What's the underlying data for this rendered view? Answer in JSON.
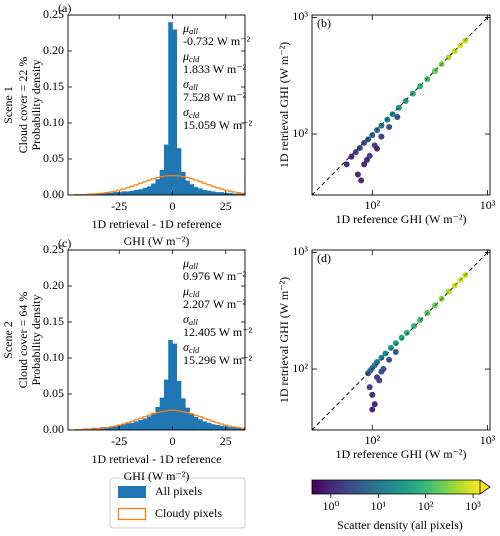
{
  "chart_data": [
    {
      "type": "histogram",
      "panel_label": "(a)",
      "scene": "Scene 1",
      "cloud_cover": "Cloud cover = 22 %",
      "ylabel": "Probability density",
      "xlabel": [
        "1D retrieval - 1D reference",
        "GHI (W m⁻²)"
      ],
      "xlim": [
        -49,
        34
      ],
      "ylim": [
        0,
        0.25
      ],
      "xticks": [
        -25,
        0,
        25
      ],
      "yticks": [
        {
          "value": 0,
          "label": "0.00"
        },
        {
          "value": 0.05,
          "label": "0.05"
        },
        {
          "value": 0.1,
          "label": "0.10"
        },
        {
          "value": 0.15,
          "label": "0.15"
        },
        {
          "value": 0.2,
          "label": "0.20"
        },
        {
          "value": 0.25,
          "label": "0.25"
        }
      ],
      "bins": [
        -46,
        -44,
        -42,
        -40,
        -38,
        -36,
        -34,
        -32,
        -30,
        -28,
        -26,
        -24,
        -22,
        -20,
        -18,
        -16,
        -14,
        -12,
        -10,
        -8,
        -6,
        -4,
        -2,
        0,
        2,
        4,
        6,
        8,
        10,
        12,
        14,
        16,
        18,
        20,
        22,
        24,
        26,
        28,
        30,
        32,
        34
      ],
      "series": [
        {
          "name": "All pixels",
          "color": "#1f77b4",
          "style": "filled",
          "values": [
            0.001,
            0.001,
            0.001,
            0.002,
            0.002,
            0.002,
            0.003,
            0.003,
            0.003,
            0.004,
            0.004,
            0.005,
            0.005,
            0.006,
            0.007,
            0.008,
            0.01,
            0.012,
            0.016,
            0.022,
            0.035,
            0.07,
            0.24,
            0.23,
            0.065,
            0.032,
            0.02,
            0.015,
            0.011,
            0.009,
            0.007,
            0.006,
            0.005,
            0.004,
            0.004,
            0.003,
            0.003,
            0.002,
            0.002,
            0.002
          ]
        },
        {
          "name": "Cloudy pixels",
          "color": "#ff7f0e",
          "style": "step",
          "values": [
            0.0003,
            0.0004,
            0.0006,
            0.0009,
            0.0013,
            0.0018,
            0.0024,
            0.0032,
            0.0042,
            0.0053,
            0.0067,
            0.0083,
            0.0101,
            0.0121,
            0.0142,
            0.0164,
            0.0185,
            0.0206,
            0.0226,
            0.0242,
            0.0255,
            0.0265,
            0.0269,
            0.0269,
            0.0265,
            0.0255,
            0.0242,
            0.0226,
            0.0206,
            0.0185,
            0.0164,
            0.0142,
            0.0121,
            0.0101,
            0.0083,
            0.0067,
            0.0053,
            0.0042,
            0.0032,
            0.0024
          ]
        }
      ],
      "annotations": [
        {
          "symbol": "μ",
          "sub": "all",
          "text": "-0.732 W m⁻²"
        },
        {
          "symbol": "μ",
          "sub": "cld",
          "text": "1.833 W m⁻²"
        },
        {
          "symbol": "σ",
          "sub": "all",
          "text": "7.528 W m⁻²"
        },
        {
          "symbol": "σ",
          "sub": "cld",
          "text": "15.059 W m⁻²"
        }
      ]
    },
    {
      "type": "scatter",
      "panel_label": "(b)",
      "xlabel": "1D reference GHI (W m⁻²)",
      "ylabel": "1D retrieval GHI (W m⁻²)",
      "log": true,
      "identity_line": true,
      "xlim": [
        30,
        1050
      ],
      "ylim": [
        30,
        1050
      ],
      "xticks": [
        {
          "value": 100,
          "label": "10²"
        },
        {
          "value": 1000,
          "label": "10³"
        }
      ],
      "yticks": [
        {
          "value": 100,
          "label": "10²"
        },
        {
          "value": 1000,
          "label": "10³"
        }
      ],
      "x": [
        60,
        66,
        72,
        78,
        85,
        92,
        100,
        110,
        120,
        135,
        150,
        170,
        195,
        225,
        260,
        300,
        350,
        400,
        460,
        520,
        580,
        640,
        75,
        85,
        95,
        105,
        120,
        140,
        165,
        90,
        110,
        80
      ],
      "y": [
        55,
        64,
        70,
        76,
        84,
        90,
        98,
        108,
        118,
        133,
        148,
        168,
        192,
        222,
        257,
        296,
        347,
        398,
        455,
        515,
        575,
        635,
        45,
        55,
        65,
        80,
        95,
        115,
        140,
        60,
        75,
        40
      ],
      "density": [
        1,
        1,
        2,
        2,
        3,
        4,
        5,
        8,
        10,
        15,
        20,
        30,
        40,
        60,
        80,
        120,
        200,
        300,
        500,
        800,
        1000,
        600,
        1,
        1,
        2,
        2,
        2,
        3,
        3,
        1,
        1,
        1
      ]
    },
    {
      "type": "histogram",
      "panel_label": "(c)",
      "scene": "Scene 2",
      "cloud_cover": "Cloud cover = 64 %",
      "ylabel": "Probability density",
      "xlabel": [
        "1D retrieval - 1D reference",
        "GHI (W m⁻²)"
      ],
      "xlim": [
        -49,
        34
      ],
      "ylim": [
        0,
        0.25
      ],
      "xticks": [
        -25,
        0,
        25
      ],
      "yticks": [
        {
          "value": 0,
          "label": "0.00"
        },
        {
          "value": 0.05,
          "label": "0.05"
        },
        {
          "value": 0.1,
          "label": "0.10"
        },
        {
          "value": 0.15,
          "label": "0.15"
        },
        {
          "value": 0.2,
          "label": "0.20"
        },
        {
          "value": 0.25,
          "label": "0.25"
        }
      ],
      "bins": [
        -46,
        -44,
        -42,
        -40,
        -38,
        -36,
        -34,
        -32,
        -30,
        -28,
        -26,
        -24,
        -22,
        -20,
        -18,
        -16,
        -14,
        -12,
        -10,
        -8,
        -6,
        -4,
        -2,
        0,
        2,
        4,
        6,
        8,
        10,
        12,
        14,
        16,
        18,
        20,
        22,
        24,
        26,
        28,
        30,
        32,
        34
      ],
      "series": [
        {
          "name": "All pixels",
          "color": "#1f77b4",
          "style": "filled",
          "values": [
            0.001,
            0.001,
            0.002,
            0.002,
            0.003,
            0.003,
            0.004,
            0.004,
            0.005,
            0.006,
            0.007,
            0.008,
            0.009,
            0.01,
            0.012,
            0.014,
            0.016,
            0.019,
            0.024,
            0.032,
            0.045,
            0.07,
            0.125,
            0.12,
            0.068,
            0.044,
            0.031,
            0.023,
            0.018,
            0.015,
            0.012,
            0.01,
            0.008,
            0.007,
            0.006,
            0.005,
            0.004,
            0.004,
            0.003,
            0.003
          ]
        },
        {
          "name": "Cloudy pixels",
          "color": "#ff7f0e",
          "style": "step",
          "values": [
            0.0003,
            0.0004,
            0.0006,
            0.0009,
            0.0013,
            0.0018,
            0.0024,
            0.0032,
            0.0042,
            0.0053,
            0.0067,
            0.0083,
            0.0101,
            0.0121,
            0.0142,
            0.0164,
            0.0185,
            0.0206,
            0.0226,
            0.0242,
            0.0255,
            0.0265,
            0.0275,
            0.0275,
            0.0265,
            0.0255,
            0.0242,
            0.0226,
            0.0206,
            0.0185,
            0.0164,
            0.0142,
            0.0121,
            0.0101,
            0.0083,
            0.0067,
            0.0053,
            0.0042,
            0.0032,
            0.0024
          ]
        }
      ],
      "annotations": [
        {
          "symbol": "μ",
          "sub": "all",
          "text": "0.976 W m⁻²"
        },
        {
          "symbol": "μ",
          "sub": "cld",
          "text": "2.207 W m⁻²"
        },
        {
          "symbol": "σ",
          "sub": "all",
          "text": "12.405 W m⁻²"
        },
        {
          "symbol": "σ",
          "sub": "cld",
          "text": "15.296 W m⁻²"
        }
      ]
    },
    {
      "type": "scatter",
      "panel_label": "(d)",
      "xlabel": "1D reference GHI (W m⁻²)",
      "ylabel": "1D retrieval GHI (W m⁻²)",
      "log": true,
      "identity_line": true,
      "xlim": [
        30,
        1050
      ],
      "ylim": [
        30,
        1050
      ],
      "xticks": [
        {
          "value": 100,
          "label": "10²"
        },
        {
          "value": 1000,
          "label": "10³"
        }
      ],
      "yticks": [
        {
          "value": 100,
          "label": "10²"
        },
        {
          "value": 1000,
          "label": "10³"
        }
      ],
      "x": [
        92,
        96,
        100,
        105,
        110,
        120,
        130,
        145,
        160,
        180,
        200,
        230,
        260,
        300,
        350,
        400,
        460,
        520,
        580,
        640,
        95,
        100,
        110,
        120,
        140,
        105,
        115,
        100,
        125,
        160
      ],
      "y": [
        92,
        97,
        102,
        108,
        115,
        125,
        136,
        152,
        167,
        186,
        205,
        234,
        264,
        303,
        352,
        402,
        462,
        521,
        581,
        640,
        70,
        60,
        85,
        95,
        120,
        50,
        80,
        45,
        100,
        140
      ],
      "density": [
        3,
        5,
        6,
        8,
        10,
        15,
        20,
        30,
        40,
        50,
        60,
        80,
        100,
        150,
        200,
        300,
        500,
        800,
        1000,
        700,
        2,
        1,
        2,
        3,
        3,
        1,
        2,
        1,
        3,
        4
      ]
    }
  ],
  "colorbar": {
    "label": "Scatter density (all pixels)",
    "colormap": "viridis",
    "lim": [
      0.4,
      1400
    ],
    "ticks": [
      {
        "value": 1,
        "label": "10⁰"
      },
      {
        "value": 10,
        "label": "10¹"
      },
      {
        "value": 100,
        "label": "10²"
      },
      {
        "value": 1000,
        "label": "10³"
      }
    ]
  }
}
